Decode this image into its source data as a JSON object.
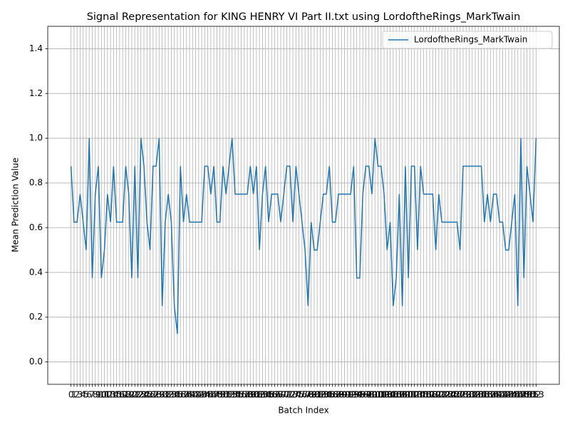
{
  "chart_data": {
    "type": "line",
    "title": "Signal Representation for KING HENRY VI Part II.txt using LordoftheRings_MarkTwain",
    "x_label": "Batch Index",
    "y_label": "Mean Prediction Value",
    "x": [
      0,
      1,
      2,
      3,
      4,
      5,
      6,
      7,
      8,
      9,
      10,
      11,
      12,
      13,
      14,
      15,
      16,
      17,
      18,
      19,
      20,
      21,
      22,
      23,
      24,
      25,
      26,
      27,
      28,
      29,
      30,
      31,
      32,
      33,
      34,
      35,
      36,
      37,
      38,
      39,
      40,
      41,
      42,
      43,
      44,
      45,
      46,
      47,
      48,
      49,
      50,
      51,
      52,
      53,
      54,
      55,
      56,
      57,
      58,
      59,
      60,
      61,
      62,
      63,
      64,
      65,
      66,
      67,
      68,
      69,
      70,
      71,
      72,
      73,
      74,
      75,
      76,
      77,
      78,
      79,
      80,
      81,
      82,
      83,
      84,
      85,
      86,
      87,
      88,
      89,
      90,
      91,
      92,
      93,
      94,
      95,
      96,
      97,
      98,
      99,
      100,
      101,
      102,
      103,
      104,
      105,
      106,
      107,
      108,
      109,
      110,
      111,
      112,
      113,
      114,
      115,
      116,
      117,
      118,
      119,
      120,
      121,
      122,
      123,
      124,
      125,
      126,
      127,
      128,
      129,
      130,
      131,
      132,
      133,
      134,
      135,
      136,
      137,
      138,
      139,
      140,
      141,
      142,
      143,
      144,
      145,
      146,
      147,
      148,
      149,
      150,
      151,
      152,
      153
    ],
    "series": [
      {
        "name": "LordoftheRings_MarkTwain",
        "color": "#1f77b4",
        "values": [
          0.875,
          0.625,
          0.625,
          0.75,
          0.625,
          0.5,
          1,
          0.375,
          0.75,
          0.875,
          0.375,
          0.5,
          0.75,
          0.625,
          0.875,
          0.625,
          0.625,
          0.625,
          0.875,
          0.75,
          0.375,
          0.875,
          0.375,
          1,
          0.875,
          0.625,
          0.5,
          0.875,
          0.875,
          1,
          0.25,
          0.625,
          0.75,
          0.625,
          0.25,
          0.125,
          0.875,
          0.625,
          0.75,
          0.625,
          0.625,
          0.625,
          0.625,
          0.625,
          0.875,
          0.875,
          0.75,
          0.875,
          0.625,
          0.625,
          0.875,
          0.75,
          0.875,
          1,
          0.75,
          0.75,
          0.75,
          0.75,
          0.75,
          0.875,
          0.75,
          0.875,
          0.5,
          0.75,
          0.875,
          0.625,
          0.75,
          0.75,
          0.75,
          0.625,
          0.75,
          0.875,
          0.875,
          0.625,
          0.875,
          0.75,
          0.625,
          0.5,
          0.25,
          0.625,
          0.5,
          0.5,
          0.625,
          0.75,
          0.75,
          0.875,
          0.625,
          0.625,
          0.75,
          0.75,
          0.75,
          0.75,
          0.75,
          0.875,
          0.375,
          0.375,
          0.75,
          0.875,
          0.875,
          0.75,
          1,
          0.875,
          0.875,
          0.75,
          0.5,
          0.625,
          0.25,
          0.375,
          0.75,
          0.25,
          0.875,
          0.375,
          0.875,
          0.875,
          0.5,
          0.875,
          0.75,
          0.75,
          0.75,
          0.75,
          0.5,
          0.75,
          0.625,
          0.625,
          0.625,
          0.625,
          0.625,
          0.625,
          0.5,
          0.875,
          0.875,
          0.875,
          0.875,
          0.875,
          0.875,
          0.875,
          0.625,
          0.75,
          0.625,
          0.75,
          0.75,
          0.625,
          0.625,
          0.5,
          0.5,
          0.625,
          0.75,
          0.25,
          1,
          0.375,
          0.875,
          0.75,
          0.625,
          1
        ]
      }
    ],
    "xlim": [
      -7.65,
      160.65
    ],
    "ylim": [
      -0.1,
      1.5
    ],
    "xticks": [
      0,
      1,
      2,
      3,
      4,
      5,
      6,
      7,
      8,
      9,
      10,
      11,
      12,
      13,
      14,
      15,
      16,
      17,
      18,
      19,
      20,
      21,
      22,
      23,
      24,
      25,
      26,
      27,
      28,
      29,
      30,
      31,
      32,
      33,
      34,
      35,
      36,
      37,
      38,
      39,
      40,
      41,
      42,
      43,
      44,
      45,
      46,
      47,
      48,
      49,
      50,
      51,
      52,
      53,
      54,
      55,
      56,
      57,
      58,
      59,
      60,
      61,
      62,
      63,
      64,
      65,
      66,
      67,
      68,
      69,
      70,
      71,
      72,
      73,
      74,
      75,
      76,
      77,
      78,
      79,
      80,
      81,
      82,
      83,
      84,
      85,
      86,
      87,
      88,
      89,
      90,
      91,
      92,
      93,
      94,
      95,
      96,
      97,
      98,
      99,
      100,
      101,
      102,
      103,
      104,
      105,
      106,
      107,
      108,
      109,
      110,
      111,
      112,
      113,
      114,
      115,
      116,
      117,
      118,
      119,
      120,
      121,
      122,
      123,
      124,
      125,
      126,
      127,
      128,
      129,
      130,
      131,
      132,
      133,
      134,
      135,
      136,
      137,
      138,
      139,
      140,
      141,
      142,
      143,
      144,
      145,
      146,
      147,
      148,
      149,
      150,
      151,
      152,
      153
    ],
    "yticks": [
      {
        "value": 0,
        "label": "0.0"
      },
      {
        "value": 0.2,
        "label": "0.2"
      },
      {
        "value": 0.4,
        "label": "0.4"
      },
      {
        "value": 0.6,
        "label": "0.6"
      },
      {
        "value": 0.8,
        "label": "0.8"
      },
      {
        "value": 1,
        "label": "1.0"
      },
      {
        "value": 1.2,
        "label": "1.2"
      },
      {
        "value": 1.4,
        "label": "1.4"
      }
    ],
    "grid": true,
    "legend": "upper right"
  }
}
